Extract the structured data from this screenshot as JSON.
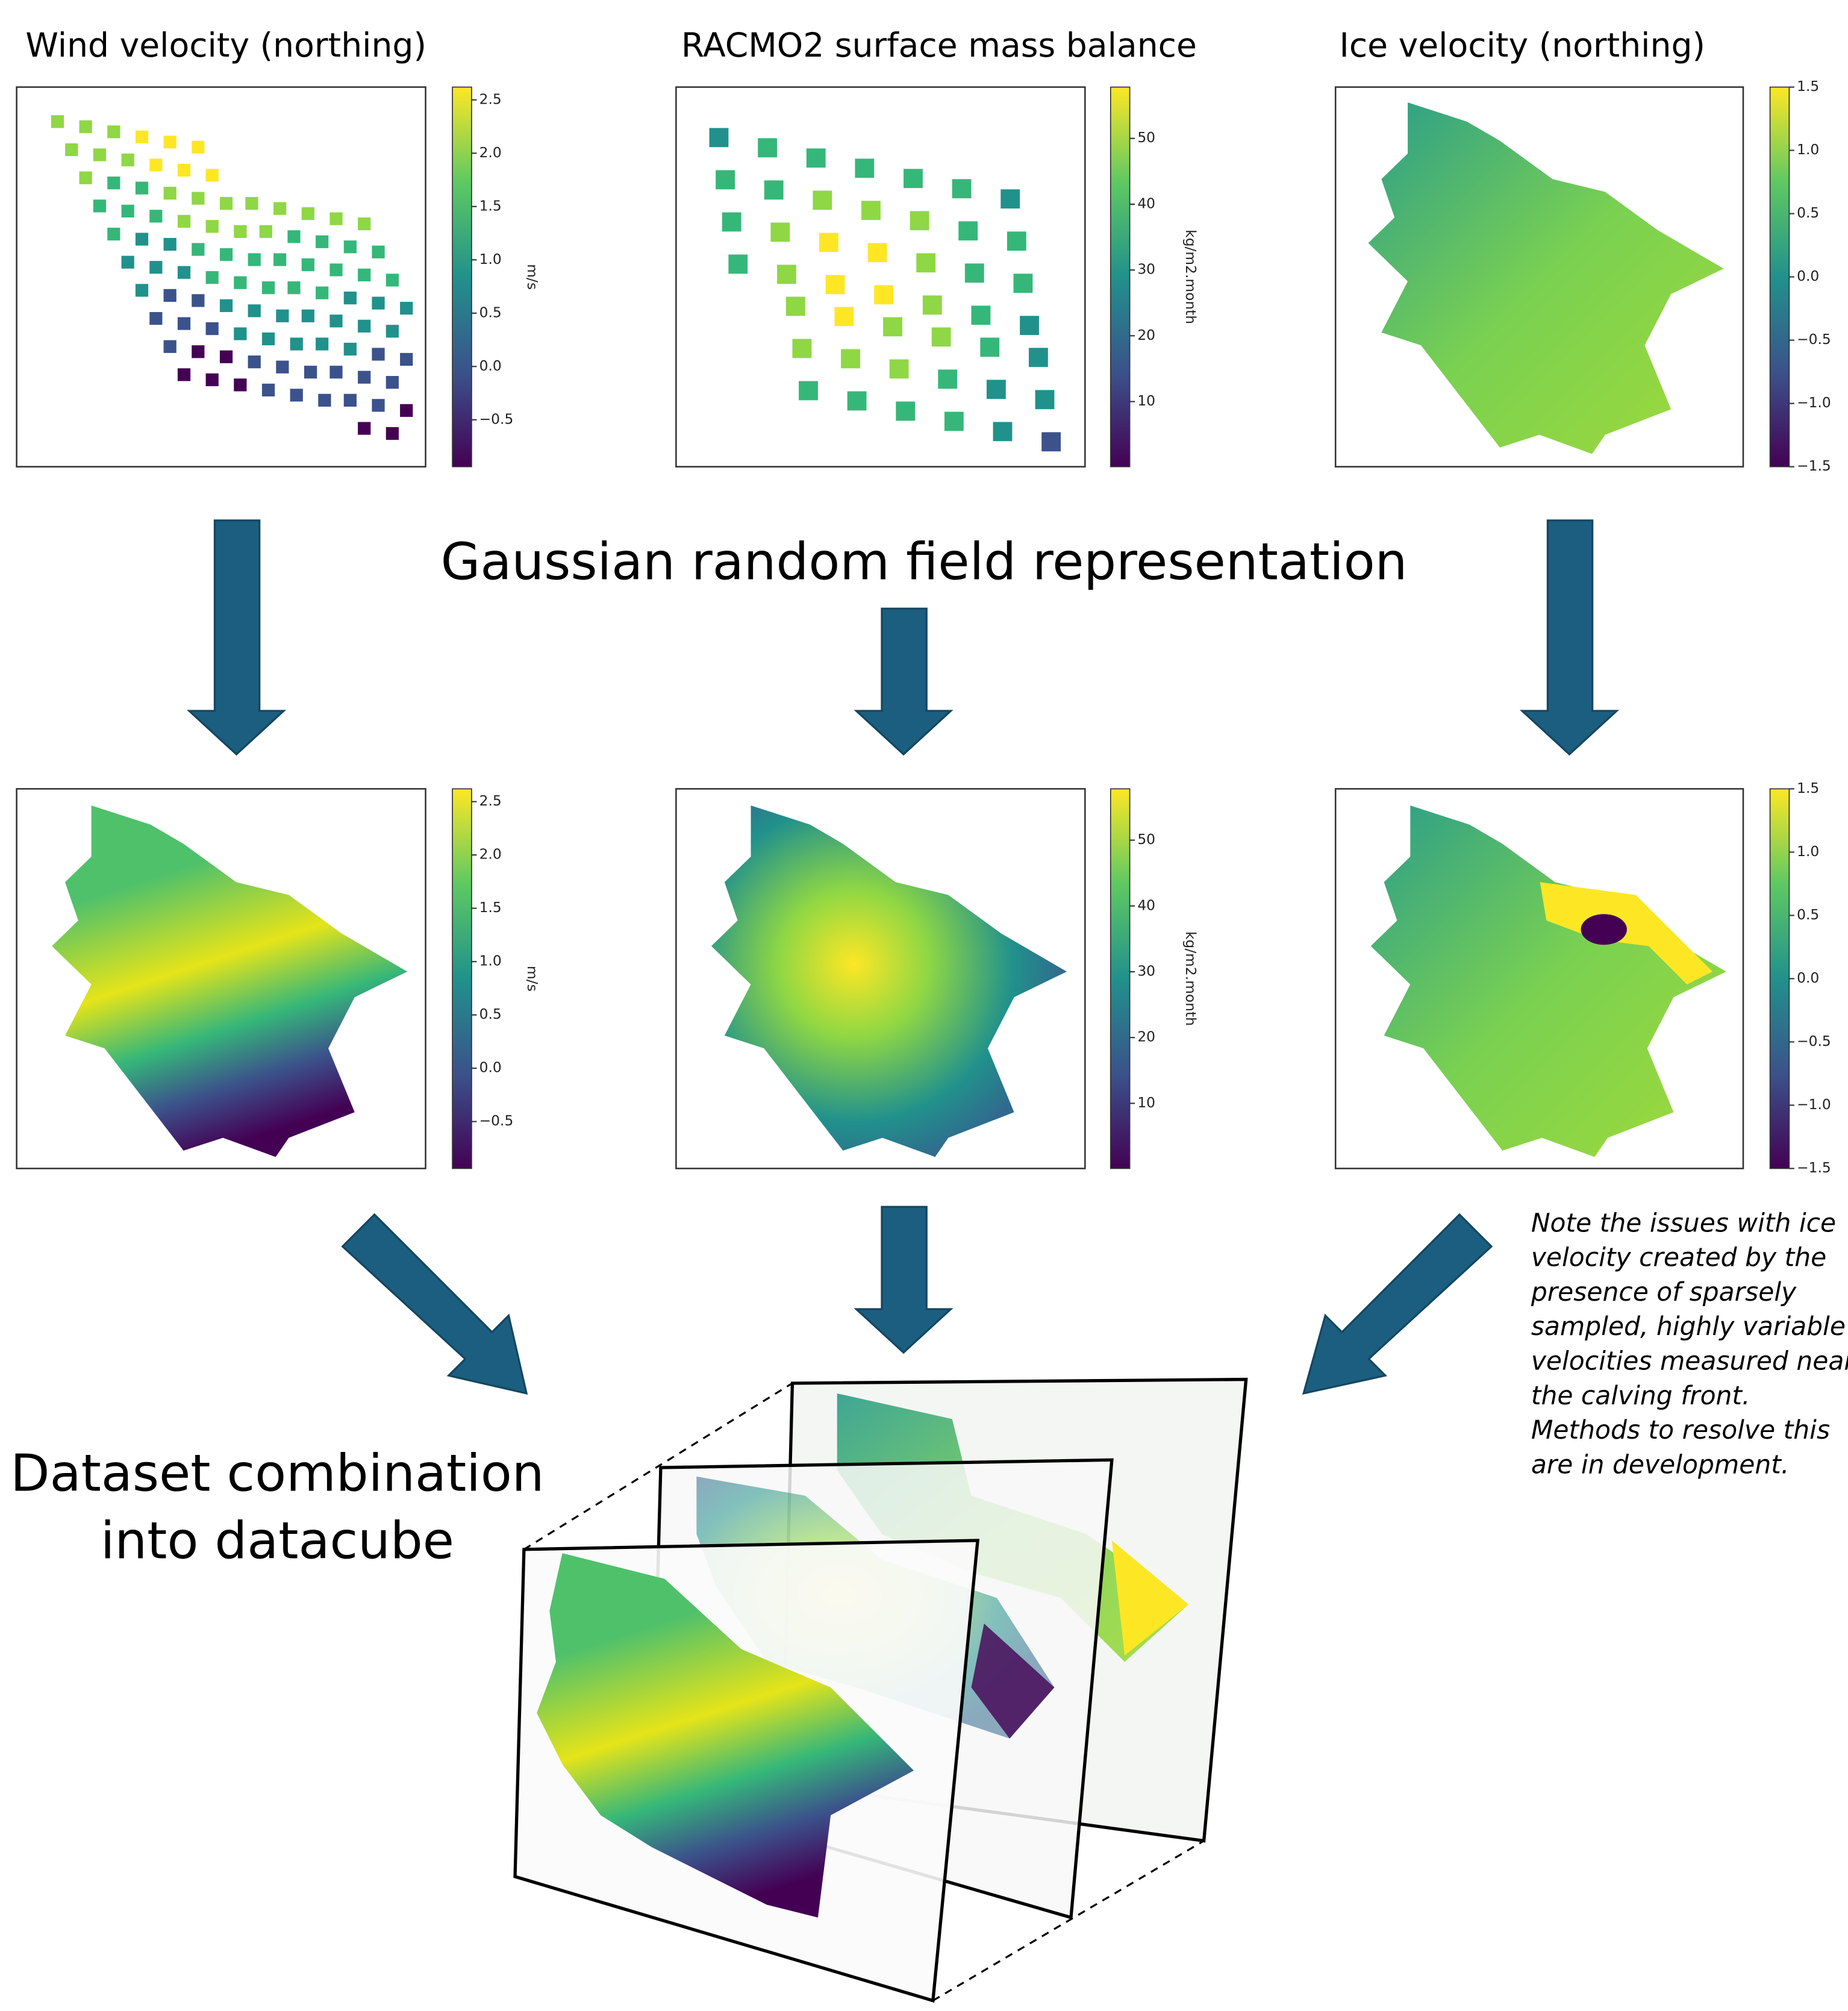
{
  "titles": [
    "Wind velocity (northing)",
    "RACMO2 surface mass balance",
    "Ice velocity (northing)"
  ],
  "colorbars": [
    {
      "range": [
        -0.94,
        2.62
      ],
      "ticks": [
        {
          "value": 2.5,
          "label": "2.5"
        },
        {
          "value": 2.0,
          "label": "2.0"
        },
        {
          "value": 1.5,
          "label": "1.5"
        },
        {
          "value": 1.0,
          "label": "1.0"
        },
        {
          "value": 0.5,
          "label": "0.5"
        },
        {
          "value": 0.0,
          "label": "0.0"
        },
        {
          "value": -0.5,
          "label": "−0.5"
        }
      ],
      "label": "m/s"
    },
    {
      "range": [
        0.1,
        57.8
      ],
      "ticks": [
        {
          "value": 50,
          "label": "50"
        },
        {
          "value": 40,
          "label": "40"
        },
        {
          "value": 30,
          "label": "30"
        },
        {
          "value": 20,
          "label": "20"
        },
        {
          "value": 10,
          "label": "10"
        }
      ],
      "label": "kg/m2.month"
    },
    {
      "range": [
        -1.5,
        1.5
      ],
      "ticks": [
        {
          "value": 1.5,
          "label": "1.5"
        },
        {
          "value": 1.0,
          "label": "1.0"
        },
        {
          "value": 0.5,
          "label": "0.5"
        },
        {
          "value": 0.0,
          "label": "0.0"
        },
        {
          "value": -0.5,
          "label": "−0.5"
        },
        {
          "value": -1.0,
          "label": "−1.0"
        },
        {
          "value": -1.5,
          "label": "−1.5"
        }
      ]
    }
  ],
  "middle_label": "Gaussian random field representation",
  "datacube_label": [
    "Dataset combination",
    "into datacube"
  ],
  "note": [
    "Note the issues with ice",
    "velocity created by the",
    "presence of sparsely",
    "sampled, highly variable",
    "velocities measured near",
    "the calving front.",
    "Methods to resolve this",
    "are in development."
  ]
}
